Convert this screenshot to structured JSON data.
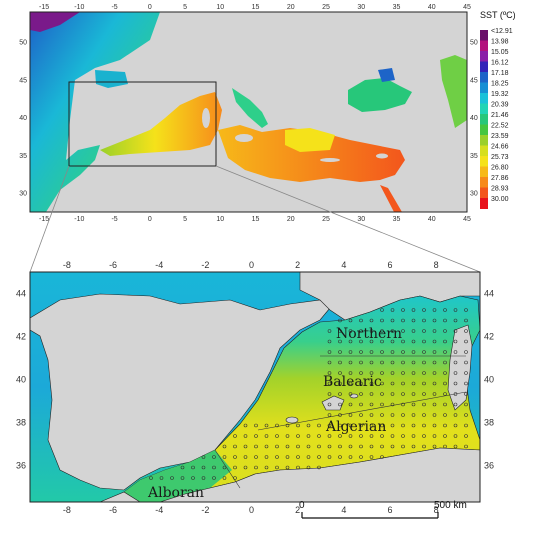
{
  "top_map": {
    "lon_ticks": [
      "-15",
      "-10",
      "-5",
      "0",
      "5",
      "10",
      "15",
      "20",
      "25",
      "30",
      "35",
      "40",
      "45"
    ],
    "lat_ticks": [
      "50",
      "45",
      "40",
      "35",
      "30"
    ]
  },
  "zoom_map": {
    "lon_ticks": [
      "-8",
      "-6",
      "-4",
      "-2",
      "0",
      "2",
      "4",
      "6",
      "8"
    ],
    "lat_ticks": [
      "44",
      "42",
      "40",
      "38",
      "36"
    ],
    "regions": [
      "Northern",
      "Balearic",
      "Algerian",
      "Alboran"
    ]
  },
  "legend": {
    "title": "SST (ºC)",
    "labels": [
      "<12.91",
      "13.98",
      "15.05",
      "16.12",
      "17.18",
      "18.25",
      "19.32",
      "20.39",
      "21.46",
      "22.52",
      "23.59",
      "24.66",
      "25.73",
      "26.80",
      "27.86",
      "28.93",
      "30.00"
    ],
    "colors": [
      "#6a0f6a",
      "#b3127d",
      "#8a1fa8",
      "#3323b8",
      "#1d64c8",
      "#168fd4",
      "#19c1d9",
      "#21d4b5",
      "#27c77a",
      "#45c640",
      "#9ad02a",
      "#d6df1e",
      "#f5e21a",
      "#f7b919",
      "#f78a1b",
      "#f3561c",
      "#e8121b"
    ]
  },
  "scale_bar": {
    "start": "0",
    "end": "500 km"
  },
  "colors": {
    "land": "#d4d4d4",
    "frame": "#222222",
    "grid": "#ffffff"
  }
}
